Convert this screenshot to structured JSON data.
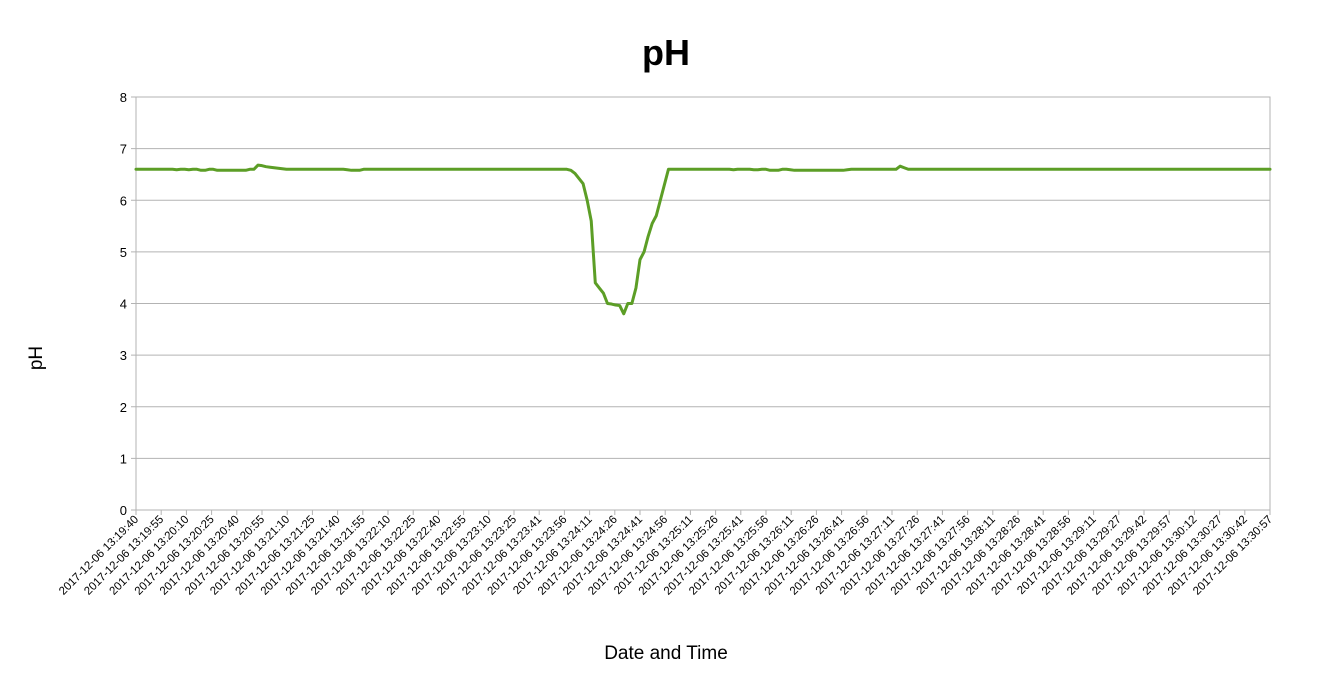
{
  "chart_data": {
    "type": "line",
    "title": "pH",
    "xlabel": "Date and Time",
    "ylabel": "pH",
    "ylim": [
      0,
      8
    ],
    "yticks": [
      0,
      1,
      2,
      3,
      4,
      5,
      6,
      7,
      8
    ],
    "grid": true,
    "legend": "none",
    "line_color": "#5c9e26",
    "x_tick_labels": [
      "2017-12-06 13:19:40",
      "2017-12-06 13:19:55",
      "2017-12-06 13:20:10",
      "2017-12-06 13:20:25",
      "2017-12-06 13:20:40",
      "2017-12-06 13:20:55",
      "2017-12-06 13:21:10",
      "2017-12-06 13:21:25",
      "2017-12-06 13:21:40",
      "2017-12-06 13:21:55",
      "2017-12-06 13:22:10",
      "2017-12-06 13:22:25",
      "2017-12-06 13:22:40",
      "2017-12-06 13:22:55",
      "2017-12-06 13:23:10",
      "2017-12-06 13:23:25",
      "2017-12-06 13:23:41",
      "2017-12-06 13:23:56",
      "2017-12-06 13:24:11",
      "2017-12-06 13:24:26",
      "2017-12-06 13:24:41",
      "2017-12-06 13:24:56",
      "2017-12-06 13:25:11",
      "2017-12-06 13:25:26",
      "2017-12-06 13:25:41",
      "2017-12-06 13:25:56",
      "2017-12-06 13:26:11",
      "2017-12-06 13:26:26",
      "2017-12-06 13:26:41",
      "2017-12-06 13:26:56",
      "2017-12-06 13:27:11",
      "2017-12-06 13:27:26",
      "2017-12-06 13:27:41",
      "2017-12-06 13:27:56",
      "2017-12-06 13:28:11",
      "2017-12-06 13:28:26",
      "2017-12-06 13:28:41",
      "2017-12-06 13:28:56",
      "2017-12-06 13:29:11",
      "2017-12-06 13:29:27",
      "2017-12-06 13:29:42",
      "2017-12-06 13:29:57",
      "2017-12-06 13:30:12",
      "2017-12-06 13:30:27",
      "2017-12-06 13:30:42",
      "2017-12-06 13:30:57"
    ],
    "values": [
      6.6,
      6.6,
      6.6,
      6.6,
      6.6,
      6.6,
      6.6,
      6.6,
      6.6,
      6.6,
      6.59,
      6.6,
      6.6,
      6.59,
      6.6,
      6.6,
      6.58,
      6.58,
      6.6,
      6.6,
      6.58,
      6.58,
      6.58,
      6.58,
      6.58,
      6.58,
      6.58,
      6.58,
      6.6,
      6.6,
      6.68,
      6.67,
      6.65,
      6.64,
      6.63,
      6.62,
      6.61,
      6.6,
      6.6,
      6.6,
      6.6,
      6.6,
      6.6,
      6.6,
      6.6,
      6.6,
      6.6,
      6.6,
      6.6,
      6.6,
      6.6,
      6.6,
      6.59,
      6.58,
      6.58,
      6.58,
      6.6,
      6.6,
      6.6,
      6.6,
      6.6,
      6.6,
      6.6,
      6.6,
      6.6,
      6.6,
      6.6,
      6.6,
      6.6,
      6.6,
      6.6,
      6.6,
      6.6,
      6.6,
      6.6,
      6.6,
      6.6,
      6.6,
      6.6,
      6.6,
      6.6,
      6.6,
      6.6,
      6.6,
      6.6,
      6.6,
      6.6,
      6.6,
      6.6,
      6.6,
      6.6,
      6.6,
      6.6,
      6.6,
      6.6,
      6.6,
      6.6,
      6.6,
      6.6,
      6.6,
      6.6,
      6.6,
      6.6,
      6.6,
      6.6,
      6.6,
      6.6,
      6.58,
      6.52,
      6.42,
      6.32,
      6.0,
      5.6,
      4.4,
      4.3,
      4.2,
      4.0,
      3.99,
      3.97,
      3.96,
      3.8,
      4.0,
      4.0,
      4.3,
      4.85,
      5.0,
      5.3,
      5.55,
      5.7,
      6.0,
      6.3,
      6.6,
      6.6,
      6.6,
      6.6,
      6.6,
      6.6,
      6.6,
      6.6,
      6.6,
      6.6,
      6.6,
      6.6,
      6.6,
      6.6,
      6.6,
      6.6,
      6.59,
      6.6,
      6.6,
      6.6,
      6.6,
      6.59,
      6.59,
      6.6,
      6.6,
      6.58,
      6.58,
      6.58,
      6.6,
      6.6,
      6.59,
      6.58,
      6.58,
      6.58,
      6.58,
      6.58,
      6.58,
      6.58,
      6.58,
      6.58,
      6.58,
      6.58,
      6.58,
      6.58,
      6.59,
      6.6,
      6.6,
      6.6,
      6.6,
      6.6,
      6.6,
      6.6,
      6.6,
      6.6,
      6.6,
      6.6,
      6.6,
      6.66,
      6.63,
      6.6,
      6.6,
      6.6,
      6.6,
      6.6,
      6.6,
      6.6,
      6.6,
      6.6,
      6.6,
      6.6,
      6.6,
      6.6,
      6.6,
      6.6,
      6.6,
      6.6,
      6.6,
      6.6,
      6.6,
      6.6,
      6.6,
      6.6,
      6.6,
      6.6,
      6.6,
      6.6,
      6.6,
      6.6,
      6.6,
      6.6,
      6.6,
      6.6,
      6.6,
      6.6,
      6.6,
      6.6,
      6.6,
      6.6,
      6.6,
      6.6,
      6.6,
      6.6,
      6.6,
      6.6,
      6.6,
      6.6,
      6.6,
      6.6,
      6.6,
      6.6,
      6.6,
      6.6,
      6.6,
      6.6,
      6.6,
      6.6,
      6.6,
      6.6,
      6.6,
      6.6,
      6.6,
      6.6,
      6.6,
      6.6,
      6.6,
      6.6,
      6.6,
      6.6,
      6.6,
      6.6,
      6.6,
      6.6,
      6.6,
      6.6,
      6.6,
      6.6,
      6.6,
      6.6,
      6.6,
      6.6,
      6.6,
      6.6,
      6.6,
      6.6,
      6.6,
      6.6,
      6.6,
      6.6,
      6.6
    ]
  }
}
